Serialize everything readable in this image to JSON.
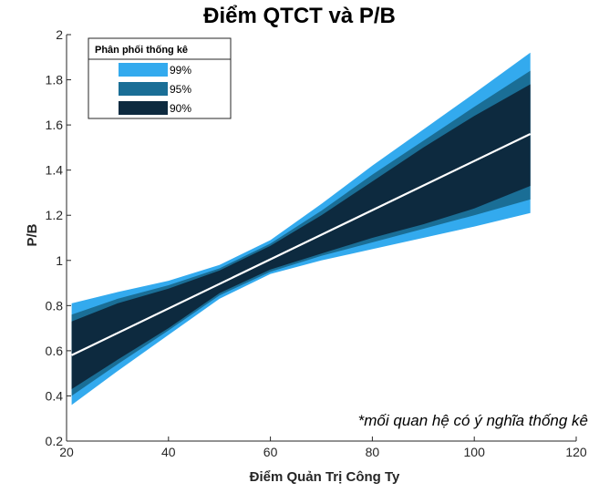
{
  "chart_data": {
    "type": "area",
    "title": "Điểm QTCT và P/B",
    "xlabel": "Điểm Quản Trị Công Ty",
    "ylabel": "P/B",
    "xlim": [
      20,
      120
    ],
    "ylim": [
      0.2,
      2
    ],
    "xticks": [
      20,
      40,
      60,
      80,
      100,
      120
    ],
    "xtick_labels": [
      "20",
      "40",
      "60",
      "80",
      "100",
      "120"
    ],
    "yticks": [
      0.2,
      0.4,
      0.6,
      0.8,
      1,
      1.2,
      1.4,
      1.6,
      1.8,
      2
    ],
    "ytick_labels": [
      "0.2",
      "0.4",
      "0.6",
      "0.8",
      "1",
      "1.2",
      "1.4",
      "1.6",
      "1.8",
      "2"
    ],
    "grid": false,
    "legend_title": "Phân phối thống kê",
    "legend_position": "top-left",
    "x": [
      21,
      30,
      40,
      50,
      60,
      70,
      80,
      90,
      100,
      111
    ],
    "series": [
      {
        "name": "99%",
        "color": "#33aaee",
        "upper": [
          0.81,
          0.86,
          0.91,
          0.98,
          1.09,
          1.25,
          1.42,
          1.58,
          1.74,
          1.92
        ],
        "lower": [
          0.36,
          0.51,
          0.67,
          0.83,
          0.94,
          1.0,
          1.05,
          1.1,
          1.15,
          1.21
        ]
      },
      {
        "name": "95%",
        "color": "#1a6e96",
        "upper": [
          0.76,
          0.83,
          0.89,
          0.965,
          1.075,
          1.22,
          1.38,
          1.53,
          1.68,
          1.84
        ],
        "lower": [
          0.4,
          0.54,
          0.69,
          0.845,
          0.95,
          1.02,
          1.08,
          1.14,
          1.2,
          1.27
        ]
      },
      {
        "name": "90%",
        "color": "#0d2a3f",
        "upper": [
          0.73,
          0.81,
          0.875,
          0.955,
          1.065,
          1.2,
          1.35,
          1.5,
          1.64,
          1.78
        ],
        "lower": [
          0.43,
          0.56,
          0.7,
          0.855,
          0.96,
          1.03,
          1.1,
          1.16,
          1.23,
          1.33
        ]
      }
    ],
    "mean_line": {
      "color": "#ffffff",
      "points": [
        [
          21,
          0.58
        ],
        [
          111,
          1.56
        ]
      ]
    },
    "annotation": "*mối quan hệ có ý nghĩa thống kê"
  }
}
